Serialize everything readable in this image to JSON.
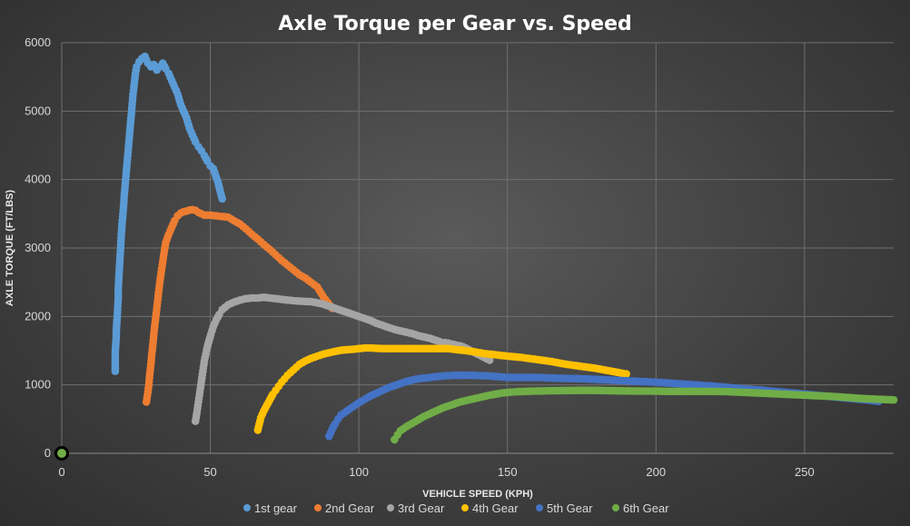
{
  "chart_data": {
    "type": "scatter",
    "title": "Axle Torque per Gear vs. Speed",
    "xlabel": "VEHICLE SPEED (KPH)",
    "ylabel": "AXLE TORQUE (FT/LBS)",
    "xlim": [
      0,
      280
    ],
    "ylim": [
      0,
      6000
    ],
    "x_ticks": [
      0,
      50,
      100,
      150,
      200,
      250
    ],
    "y_ticks": [
      0,
      1000,
      2000,
      3000,
      4000,
      5000,
      6000
    ],
    "grid": true,
    "legend_position": "bottom",
    "series": [
      {
        "name": "1st gear",
        "color": "#5b9bd5",
        "points": [
          [
            18,
            1200
          ],
          [
            18,
            1480
          ],
          [
            18.3,
            1680
          ],
          [
            18.4,
            1820
          ],
          [
            18.6,
            1950
          ],
          [
            18.8,
            2100
          ],
          [
            19,
            2250
          ],
          [
            19,
            2400
          ],
          [
            19.2,
            2550
          ],
          [
            19.4,
            2700
          ],
          [
            19.6,
            2850
          ],
          [
            19.8,
            3000
          ],
          [
            20,
            3150
          ],
          [
            20.2,
            3300
          ],
          [
            20.5,
            3450
          ],
          [
            20.8,
            3600
          ],
          [
            21,
            3750
          ],
          [
            21.3,
            3900
          ],
          [
            21.6,
            4050
          ],
          [
            21.9,
            4200
          ],
          [
            22.2,
            4350
          ],
          [
            22.5,
            4500
          ],
          [
            22.8,
            4650
          ],
          [
            23.1,
            4800
          ],
          [
            23.4,
            4950
          ],
          [
            23.7,
            5100
          ],
          [
            24,
            5250
          ],
          [
            24.4,
            5400
          ],
          [
            24.8,
            5550
          ],
          [
            25.2,
            5650
          ],
          [
            26,
            5720
          ],
          [
            27,
            5770
          ],
          [
            28,
            5800
          ],
          [
            29,
            5700
          ],
          [
            30,
            5650
          ],
          [
            31,
            5680
          ],
          [
            32,
            5600
          ],
          [
            33,
            5650
          ],
          [
            34,
            5700
          ],
          [
            35,
            5620
          ],
          [
            36,
            5550
          ],
          [
            37,
            5450
          ],
          [
            38,
            5350
          ],
          [
            39,
            5250
          ],
          [
            40,
            5100
          ],
          [
            41,
            5000
          ],
          [
            42,
            4900
          ],
          [
            43,
            4750
          ],
          [
            44,
            4650
          ],
          [
            45,
            4550
          ],
          [
            46,
            4480
          ],
          [
            47,
            4420
          ],
          [
            48,
            4350
          ],
          [
            49,
            4270
          ],
          [
            50,
            4200
          ],
          [
            51,
            4160
          ],
          [
            52.5,
            3970
          ],
          [
            54,
            3720
          ]
        ]
      },
      {
        "name": "2nd Gear",
        "color": "#ed7d31",
        "points": [
          [
            28.5,
            750
          ],
          [
            29,
            900
          ],
          [
            29.3,
            1000
          ],
          [
            29.6,
            1150
          ],
          [
            30,
            1300
          ],
          [
            30.3,
            1450
          ],
          [
            30.7,
            1600
          ],
          [
            31,
            1750
          ],
          [
            31.4,
            1900
          ],
          [
            31.8,
            2050
          ],
          [
            32.2,
            2200
          ],
          [
            32.6,
            2350
          ],
          [
            33,
            2500
          ],
          [
            33.5,
            2650
          ],
          [
            34,
            2800
          ],
          [
            34.5,
            2950
          ],
          [
            35,
            3080
          ],
          [
            36,
            3200
          ],
          [
            37,
            3300
          ],
          [
            38,
            3400
          ],
          [
            39,
            3470
          ],
          [
            40,
            3510
          ],
          [
            41,
            3530
          ],
          [
            42,
            3540
          ],
          [
            43,
            3555
          ],
          [
            44,
            3560
          ],
          [
            45,
            3550
          ],
          [
            46,
            3520
          ],
          [
            47,
            3500
          ],
          [
            48,
            3480
          ],
          [
            50,
            3480
          ],
          [
            52,
            3470
          ],
          [
            54,
            3460
          ],
          [
            56,
            3450
          ],
          [
            58,
            3400
          ],
          [
            60,
            3350
          ],
          [
            62,
            3280
          ],
          [
            64,
            3200
          ],
          [
            66,
            3130
          ],
          [
            68,
            3050
          ],
          [
            70,
            2980
          ],
          [
            72,
            2900
          ],
          [
            74,
            2820
          ],
          [
            76,
            2750
          ],
          [
            78,
            2680
          ],
          [
            80,
            2610
          ],
          [
            82,
            2560
          ],
          [
            86,
            2430
          ],
          [
            88,
            2290
          ],
          [
            91,
            2120
          ]
        ]
      },
      {
        "name": "3rd Gear",
        "color": "#a5a5a5",
        "points": [
          [
            45,
            470
          ],
          [
            45.5,
            600
          ],
          [
            46,
            750
          ],
          [
            46.5,
            900
          ],
          [
            47,
            1050
          ],
          [
            47.5,
            1200
          ],
          [
            48,
            1350
          ],
          [
            48.7,
            1500
          ],
          [
            49.4,
            1620
          ],
          [
            50.2,
            1740
          ],
          [
            51,
            1850
          ],
          [
            52,
            1950
          ],
          [
            53,
            2030
          ],
          [
            54,
            2100
          ],
          [
            56,
            2170
          ],
          [
            58,
            2210
          ],
          [
            60,
            2240
          ],
          [
            62,
            2260
          ],
          [
            64,
            2270
          ],
          [
            66,
            2270
          ],
          [
            68,
            2280
          ],
          [
            70,
            2270
          ],
          [
            72,
            2260
          ],
          [
            74,
            2250
          ],
          [
            76,
            2240
          ],
          [
            78,
            2230
          ],
          [
            80,
            2225
          ],
          [
            82,
            2220
          ],
          [
            84,
            2215
          ],
          [
            86,
            2200
          ],
          [
            88,
            2180
          ],
          [
            90,
            2150
          ],
          [
            92,
            2120
          ],
          [
            94,
            2090
          ],
          [
            96,
            2060
          ],
          [
            98,
            2030
          ],
          [
            100,
            2000
          ],
          [
            102,
            1970
          ],
          [
            104,
            1940
          ],
          [
            106,
            1900
          ],
          [
            108,
            1870
          ],
          [
            110,
            1840
          ],
          [
            112,
            1810
          ],
          [
            114,
            1790
          ],
          [
            116,
            1770
          ],
          [
            118,
            1750
          ],
          [
            120,
            1720
          ],
          [
            122,
            1700
          ],
          [
            124,
            1680
          ],
          [
            126,
            1650
          ],
          [
            128,
            1620
          ],
          [
            129,
            1620
          ],
          [
            135,
            1560
          ],
          [
            144,
            1360
          ]
        ]
      },
      {
        "name": "4th Gear",
        "color": "#ffc000",
        "points": [
          [
            66,
            340
          ],
          [
            66.5,
            430
          ],
          [
            67,
            520
          ],
          [
            68,
            620
          ],
          [
            69,
            700
          ],
          [
            70,
            780
          ],
          [
            71,
            860
          ],
          [
            72,
            920
          ],
          [
            73,
            980
          ],
          [
            74,
            1040
          ],
          [
            75,
            1090
          ],
          [
            76,
            1140
          ],
          [
            77,
            1180
          ],
          [
            78,
            1220
          ],
          [
            79,
            1260
          ],
          [
            80,
            1300
          ],
          [
            82,
            1350
          ],
          [
            84,
            1390
          ],
          [
            86,
            1420
          ],
          [
            88,
            1450
          ],
          [
            90,
            1470
          ],
          [
            92,
            1490
          ],
          [
            94,
            1505
          ],
          [
            96,
            1515
          ],
          [
            98,
            1520
          ],
          [
            100,
            1530
          ],
          [
            102,
            1540
          ],
          [
            104,
            1540
          ],
          [
            106,
            1535
          ],
          [
            108,
            1530
          ],
          [
            110,
            1530
          ],
          [
            114,
            1530
          ],
          [
            118,
            1530
          ],
          [
            122,
            1530
          ],
          [
            126,
            1530
          ],
          [
            130,
            1530
          ],
          [
            134,
            1510
          ],
          [
            138,
            1490
          ],
          [
            142,
            1460
          ],
          [
            146,
            1440
          ],
          [
            150,
            1420
          ],
          [
            155,
            1400
          ],
          [
            160,
            1370
          ],
          [
            165,
            1340
          ],
          [
            170,
            1300
          ],
          [
            175,
            1270
          ],
          [
            180,
            1240
          ],
          [
            185,
            1200
          ],
          [
            190,
            1160
          ]
        ]
      },
      {
        "name": "5th Gear",
        "color": "#4472c4",
        "points": [
          [
            90,
            250
          ],
          [
            91,
            350
          ],
          [
            92,
            430
          ],
          [
            93,
            500
          ],
          [
            94,
            560
          ],
          [
            96,
            620
          ],
          [
            98,
            680
          ],
          [
            100,
            740
          ],
          [
            102,
            790
          ],
          [
            104,
            840
          ],
          [
            106,
            880
          ],
          [
            108,
            920
          ],
          [
            110,
            960
          ],
          [
            112,
            990
          ],
          [
            114,
            1020
          ],
          [
            116,
            1050
          ],
          [
            118,
            1070
          ],
          [
            120,
            1090
          ],
          [
            122,
            1100
          ],
          [
            124,
            1110
          ],
          [
            126,
            1120
          ],
          [
            128,
            1130
          ],
          [
            130,
            1135
          ],
          [
            132,
            1140
          ],
          [
            135,
            1140
          ],
          [
            138,
            1140
          ],
          [
            141,
            1135
          ],
          [
            144,
            1130
          ],
          [
            147,
            1120
          ],
          [
            150,
            1110
          ],
          [
            153,
            1110
          ],
          [
            156,
            1110
          ],
          [
            160,
            1110
          ],
          [
            165,
            1100
          ],
          [
            170,
            1095
          ],
          [
            175,
            1090
          ],
          [
            180,
            1080
          ],
          [
            185,
            1070
          ],
          [
            190,
            1060
          ],
          [
            195,
            1050
          ],
          [
            200,
            1040
          ],
          [
            205,
            1025
          ],
          [
            210,
            1010
          ],
          [
            215,
            995
          ],
          [
            220,
            980
          ],
          [
            225,
            960
          ],
          [
            230,
            940
          ],
          [
            235,
            925
          ],
          [
            240,
            905
          ],
          [
            245,
            885
          ],
          [
            250,
            865
          ],
          [
            255,
            845
          ],
          [
            260,
            825
          ],
          [
            265,
            805
          ],
          [
            270,
            785
          ],
          [
            275,
            760
          ]
        ]
      },
      {
        "name": "6th Gear",
        "color": "#70ad47",
        "points": [
          [
            112,
            200
          ],
          [
            113,
            270
          ],
          [
            114,
            330
          ],
          [
            116,
            390
          ],
          [
            118,
            440
          ],
          [
            120,
            490
          ],
          [
            122,
            540
          ],
          [
            124,
            580
          ],
          [
            126,
            620
          ],
          [
            128,
            660
          ],
          [
            130,
            690
          ],
          [
            132,
            720
          ],
          [
            134,
            750
          ],
          [
            136,
            770
          ],
          [
            138,
            790
          ],
          [
            140,
            810
          ],
          [
            142,
            830
          ],
          [
            144,
            850
          ],
          [
            146,
            865
          ],
          [
            148,
            880
          ],
          [
            150,
            890
          ],
          [
            153,
            900
          ],
          [
            156,
            905
          ],
          [
            160,
            910
          ],
          [
            165,
            915
          ],
          [
            170,
            918
          ],
          [
            175,
            920
          ],
          [
            180,
            920
          ],
          [
            185,
            915
          ],
          [
            190,
            912
          ],
          [
            195,
            910
          ],
          [
            200,
            908
          ],
          [
            205,
            905
          ],
          [
            210,
            905
          ],
          [
            215,
            905
          ],
          [
            220,
            905
          ],
          [
            225,
            900
          ],
          [
            230,
            890
          ],
          [
            235,
            880
          ],
          [
            240,
            870
          ],
          [
            245,
            860
          ],
          [
            250,
            850
          ],
          [
            255,
            840
          ],
          [
            260,
            830
          ],
          [
            265,
            815
          ],
          [
            270,
            800
          ],
          [
            275,
            790
          ],
          [
            280,
            780
          ]
        ]
      }
    ],
    "origin_markers": [
      {
        "color": "#000000",
        "x": 0,
        "y": 0
      },
      {
        "color": "#70ad47",
        "x": 0,
        "y": 0
      }
    ]
  }
}
